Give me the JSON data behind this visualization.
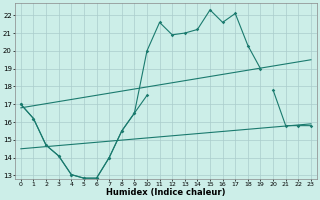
{
  "xlabel": "Humidex (Indice chaleur)",
  "background_color": "#cceee8",
  "grid_color": "#aacccc",
  "line_color": "#1a7a6e",
  "xlim": [
    -0.5,
    23.5
  ],
  "ylim": [
    12.8,
    22.7
  ],
  "xticks": [
    0,
    1,
    2,
    3,
    4,
    5,
    6,
    7,
    8,
    9,
    10,
    11,
    12,
    13,
    14,
    15,
    16,
    17,
    18,
    19,
    20,
    21,
    22,
    23
  ],
  "yticks": [
    13,
    14,
    15,
    16,
    17,
    18,
    19,
    20,
    21,
    22
  ],
  "line1_y": [
    17.0,
    16.2,
    14.7,
    14.1,
    13.05,
    12.85,
    12.85,
    14.0,
    15.5,
    16.5,
    20.0,
    21.6,
    20.9,
    21.0,
    21.2,
    22.3,
    21.6,
    22.1,
    20.3,
    19.0,
    null,
    null,
    null,
    null
  ],
  "line2_y": [
    17.0,
    16.2,
    14.7,
    14.1,
    13.05,
    12.85,
    12.85,
    14.0,
    15.5,
    16.5,
    17.5,
    null,
    null,
    null,
    null,
    null,
    null,
    null,
    null,
    null,
    17.8,
    15.8,
    15.8,
    15.8
  ],
  "line3": [
    [
      0,
      16.8
    ],
    [
      23,
      19.5
    ]
  ],
  "line4": [
    [
      0,
      14.5
    ],
    [
      23,
      15.9
    ]
  ]
}
